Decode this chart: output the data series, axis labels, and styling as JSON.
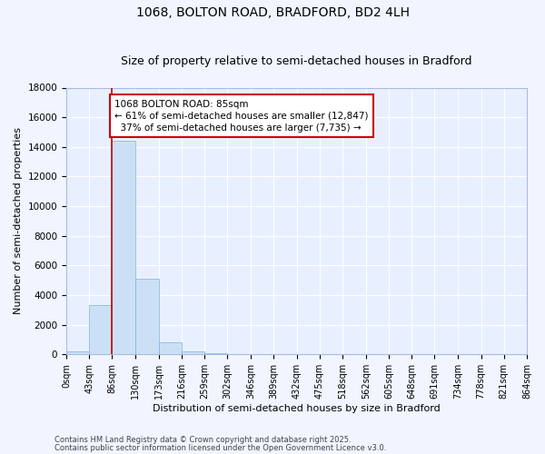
{
  "title_line1": "1068, BOLTON ROAD, BRADFORD, BD2 4LH",
  "title_line2": "Size of property relative to semi-detached houses in Bradford",
  "xlabel": "Distribution of semi-detached houses by size in Bradford",
  "ylabel": "Number of semi-detached properties",
  "bin_edges": [
    0,
    43,
    86,
    130,
    173,
    216,
    259,
    302,
    346,
    389,
    432,
    475,
    518,
    562,
    605,
    648,
    691,
    734,
    778,
    821,
    864
  ],
  "bar_heights": [
    180,
    3350,
    14400,
    5100,
    820,
    220,
    110,
    30,
    8,
    4,
    2,
    1,
    1,
    1,
    0,
    0,
    0,
    0,
    0,
    0
  ],
  "bar_color": "#cce0f5",
  "bar_edgecolor": "#7ab3d9",
  "vline_x": 86,
  "vline_color": "#cc0000",
  "ylim": [
    0,
    18000
  ],
  "yticks": [
    0,
    2000,
    4000,
    6000,
    8000,
    10000,
    12000,
    14000,
    16000,
    18000
  ],
  "annotation_text_line1": "1068 BOLTON ROAD: 85sqm",
  "annotation_text_line2": "← 61% of semi-detached houses are smaller (12,847)",
  "annotation_text_line3": "  37% of semi-detached houses are larger (7,735) →",
  "annotation_box_color": "#cc0000",
  "footer1": "Contains HM Land Registry data © Crown copyright and database right 2025.",
  "footer2": "Contains public sector information licensed under the Open Government Licence v3.0.",
  "background_color": "#f0f5ff",
  "plot_bg_color": "#e8f0ff",
  "grid_color": "#ffffff",
  "spine_color": "#aabbdd",
  "tick_color": "#333333",
  "ylabel_fontsize": 8,
  "xlabel_fontsize": 8,
  "title1_fontsize": 10,
  "title2_fontsize": 9
}
